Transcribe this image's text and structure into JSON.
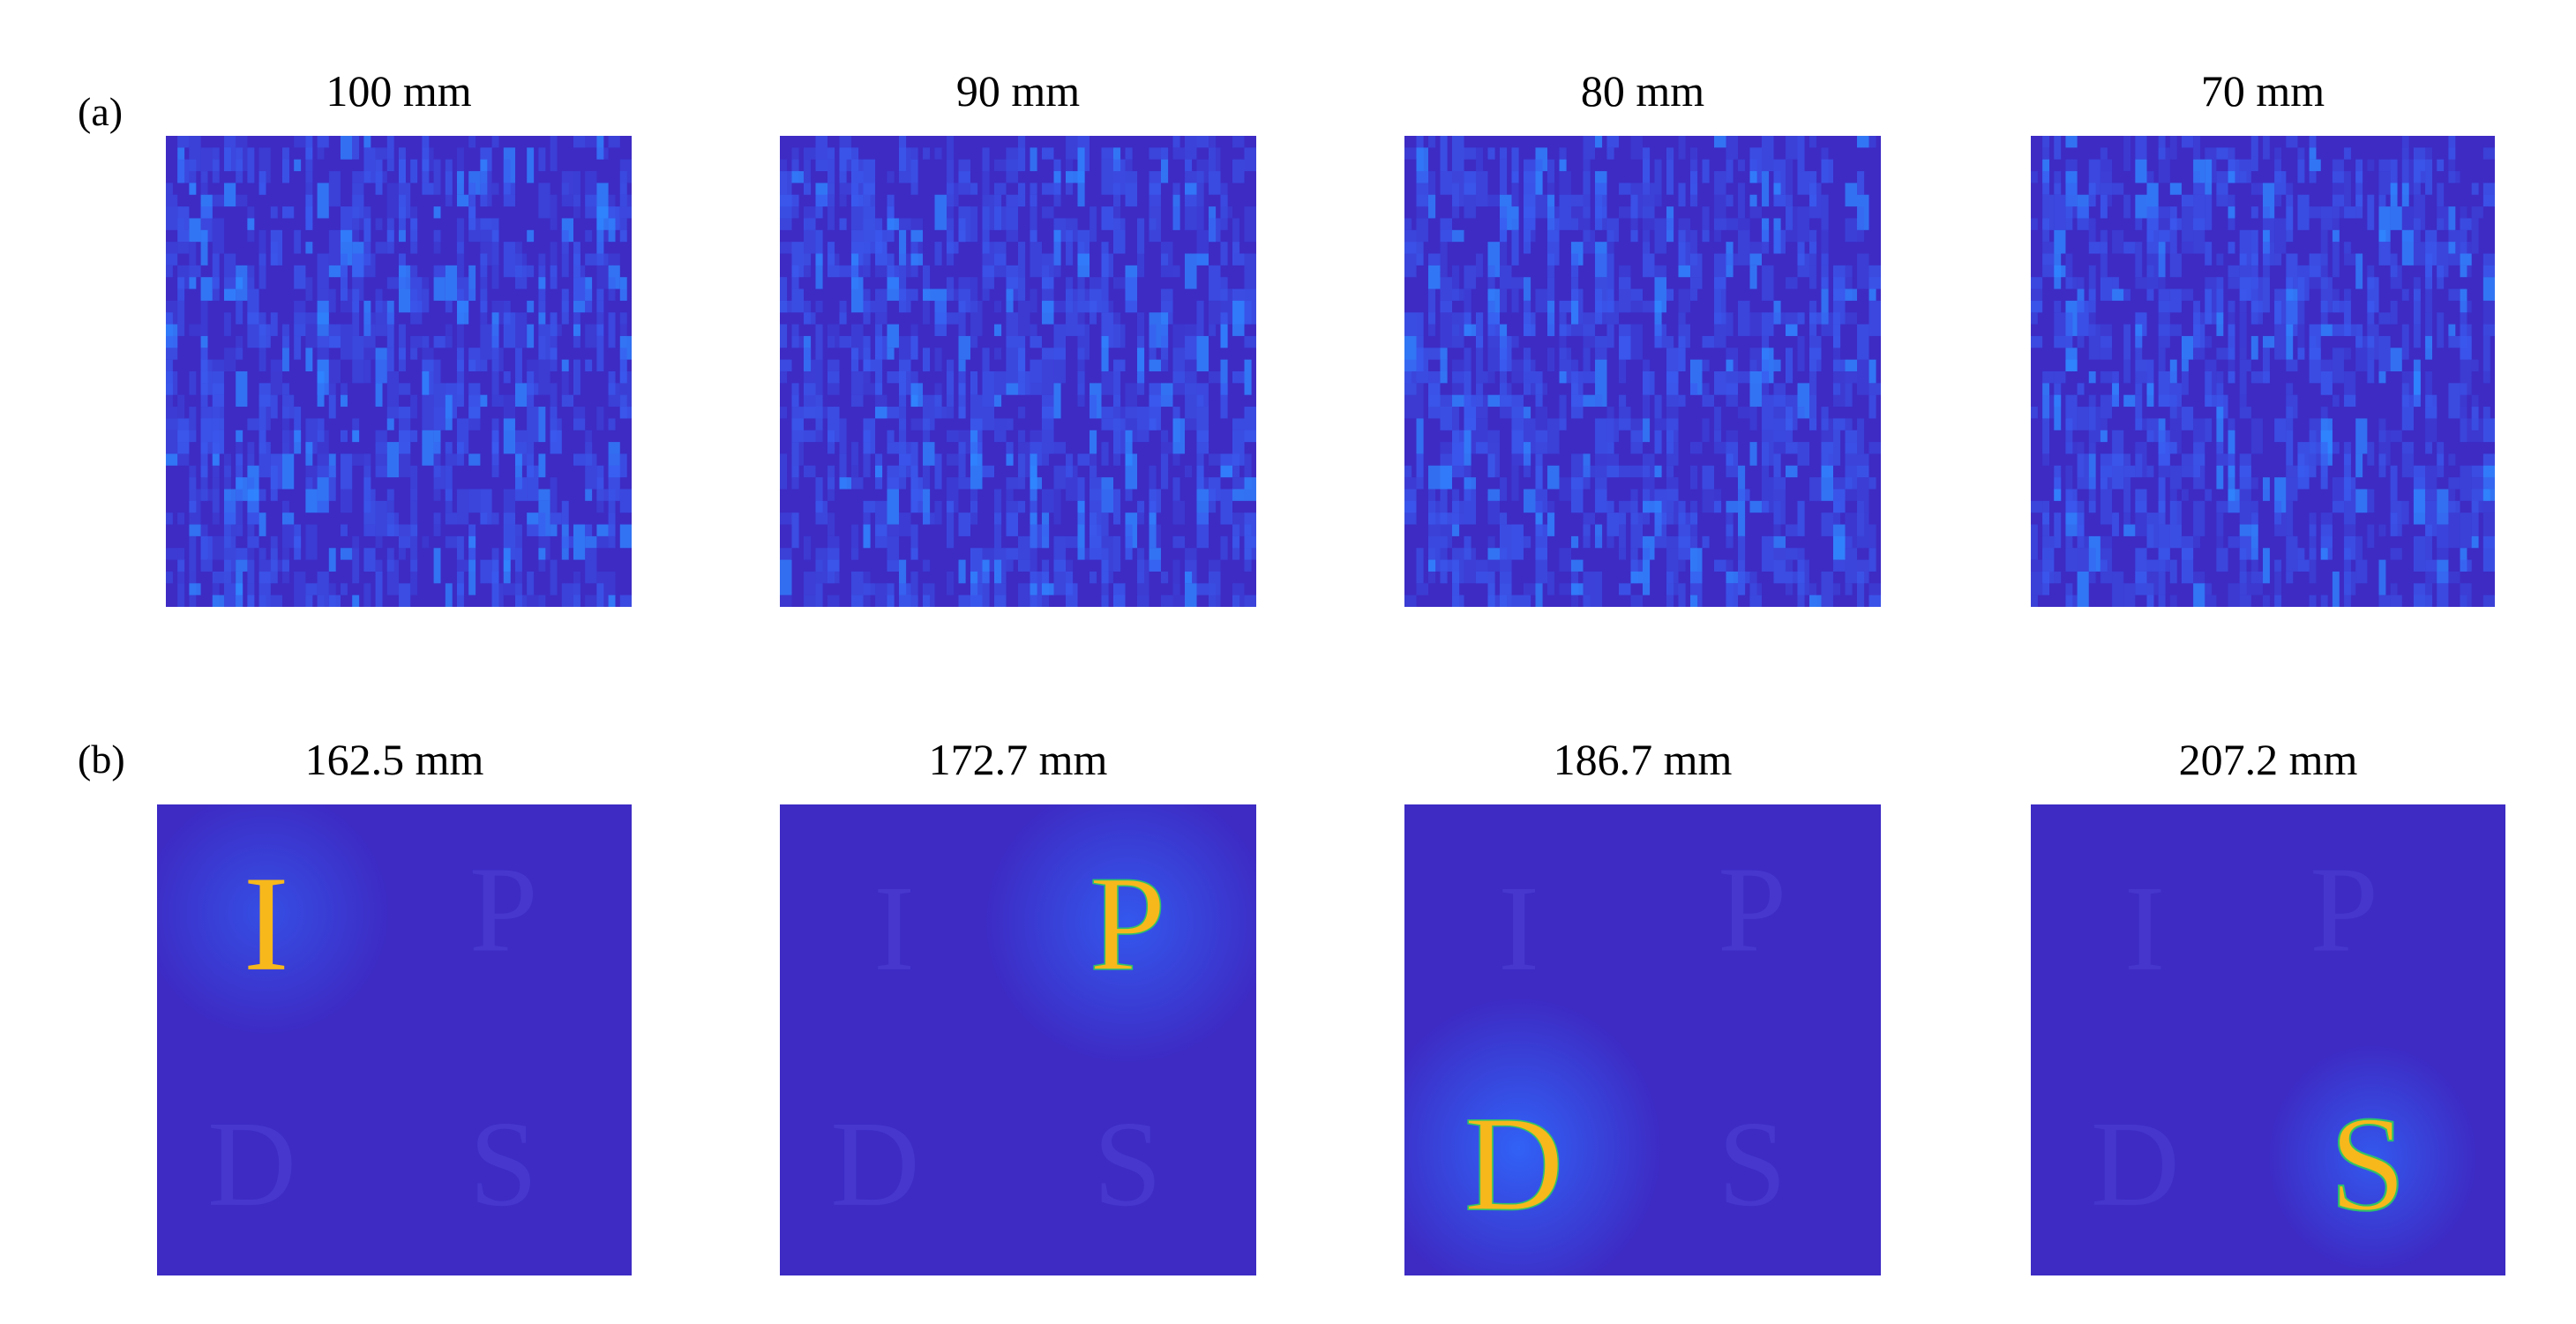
{
  "figure": {
    "row_a": {
      "label": "(a)",
      "panels": [
        {
          "title": "100 mm"
        },
        {
          "title": "90 mm"
        },
        {
          "title": "80 mm"
        },
        {
          "title": "70 mm"
        }
      ]
    },
    "row_b": {
      "label": "(b)",
      "panels": [
        {
          "title": "162.5 mm",
          "letter": "I"
        },
        {
          "title": "172.7 mm",
          "letter": "P"
        },
        {
          "title": "186.7 mm",
          "letter": "D"
        },
        {
          "title": "207.2 mm",
          "letter": "S"
        }
      ]
    },
    "colors": {
      "background_blue": "#3d2bc4",
      "speckle_blue": "#3a5cf0",
      "letter_yellow": "#f7b81c",
      "letter_green": "#2fc06a",
      "glow_blue": "#2f6bff"
    }
  }
}
